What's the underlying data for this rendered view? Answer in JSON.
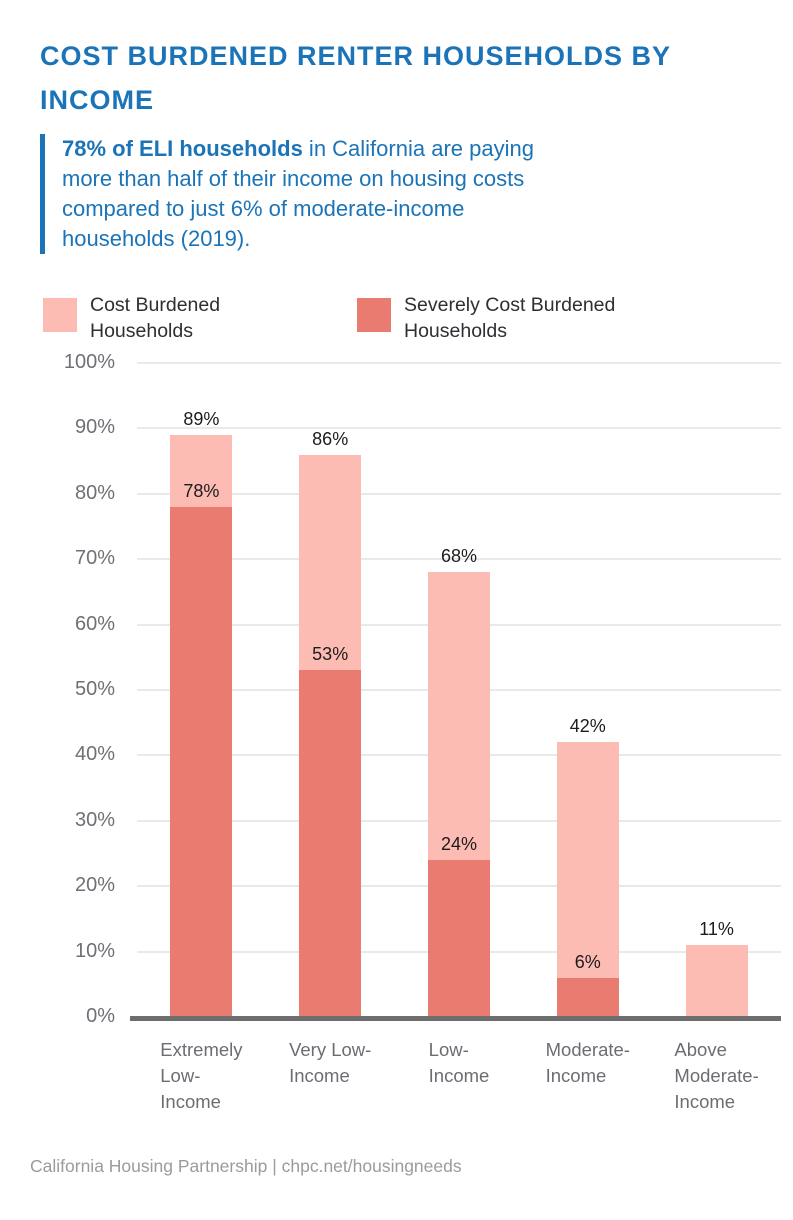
{
  "page": {
    "title": "COST BURDENED RENTER HOUSEHOLDS BY INCOME",
    "accent_color": "#1B74B8",
    "footer": "California Housing Partnership | chpc.net/housingneeds"
  },
  "callout": {
    "bold_text": "78% of ELI households",
    "rest_text": " in California are paying more than half of their income on housing costs compared to just 6% of moderate-income households (2019)."
  },
  "legend": [
    {
      "label": "Cost Burdened\nHouseholds",
      "color": "#FCBBB3"
    },
    {
      "label": "Severely Cost Burdened\nHouseholds",
      "color": "#E97B70"
    }
  ],
  "chart_data": {
    "type": "bar",
    "stacked": true,
    "title": "",
    "xlabel": "",
    "ylabel": "",
    "ylim": [
      0,
      100
    ],
    "grid": true,
    "legend_position": "top",
    "categories": [
      "Extremely Low-Income",
      "Very Low-Income",
      "Low-Income",
      "Moderate-Income",
      "Above Moderate-Income"
    ],
    "category_label_lines": [
      "Extremely\nLow-\nIncome",
      "Very Low-\nIncome",
      "Low-\nIncome",
      "Moderate-\nIncome",
      "Above\nModerate-\nIncome"
    ],
    "series": [
      {
        "name": "Cost Burdened Households",
        "role": "total-cost-burdened",
        "color": "#FCBBB3",
        "values": [
          89,
          86,
          68,
          42,
          11
        ]
      },
      {
        "name": "Severely Cost Burdened Households",
        "role": "severely-cost-burdened",
        "color": "#E97B70",
        "values": [
          78,
          53,
          24,
          6,
          0
        ]
      }
    ],
    "value_labels": {
      "totals": [
        "89%",
        "86%",
        "68%",
        "42%",
        "11%"
      ],
      "severe": [
        "78%",
        "53%",
        "24%",
        "6%",
        ""
      ]
    },
    "ytick_labels": [
      "100%",
      "90%",
      "80%",
      "70%",
      "60%",
      "50%",
      "40%",
      "30%",
      "20%",
      "10%",
      "0%"
    ],
    "colors": {
      "gridline": "#E9E9E9",
      "baseline": "#6E6E6E",
      "tick_text": "#716F75",
      "value_text": "#1C1C1C"
    }
  }
}
